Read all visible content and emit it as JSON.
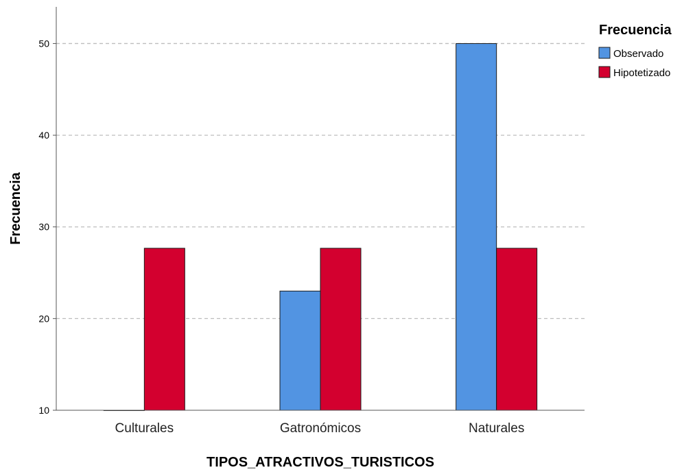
{
  "chart_data": {
    "type": "bar",
    "xlabel": "TIPOS_ATRACTIVOS_TURISTICOS",
    "ylabel": "Frecuencia",
    "categories": [
      "Culturales",
      "Gatronómicos",
      "Naturales"
    ],
    "series": [
      {
        "name": "Observado",
        "values": [
          10,
          23,
          50
        ],
        "color": "#5294E2"
      },
      {
        "name": "Hipotetizado",
        "values": [
          27.67,
          27.67,
          27.67
        ],
        "color": "#D3002F"
      }
    ],
    "ylim": [
      10,
      54
    ],
    "yticks": [
      "10",
      "20",
      "30",
      "40",
      "50"
    ],
    "grid": true,
    "legend": {
      "title": "Frecuencia",
      "placement": "top-right"
    }
  }
}
